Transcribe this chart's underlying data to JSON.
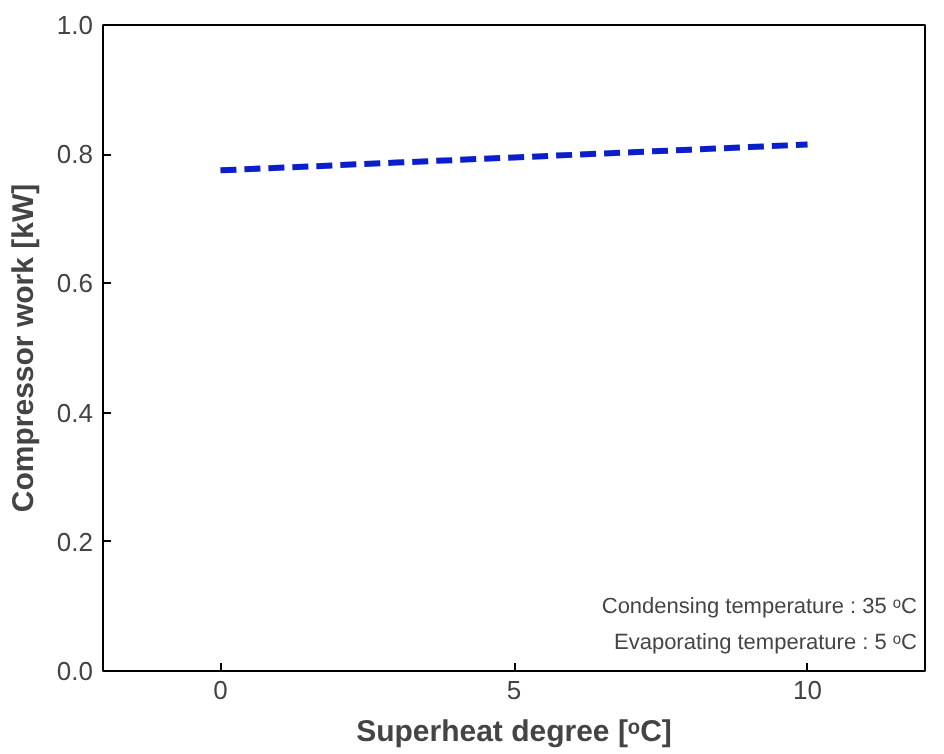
{
  "chart_data": {
    "type": "line",
    "xlabel": "Superheat degree [ᵒC]",
    "ylabel": "Compressor work [kW]",
    "x": [
      0,
      1,
      2,
      3,
      4,
      5,
      6,
      7,
      8,
      9,
      10
    ],
    "series": [
      {
        "color": "#0a1ecc",
        "values": [
          0.775,
          0.779,
          0.783,
          0.787,
          0.791,
          0.795,
          0.799,
          0.803,
          0.807,
          0.811,
          0.815
        ]
      }
    ],
    "line_style": "dashed",
    "marker": "none",
    "grid": false,
    "xlim": [
      -2,
      12
    ],
    "xticks": [
      0,
      5,
      10
    ],
    "ylim": [
      0,
      1
    ],
    "yticks": [
      {
        "value": 0,
        "label": "0.0"
      },
      0.2,
      0.4,
      0.6,
      0.8,
      {
        "value": 1,
        "label": "1.0"
      }
    ],
    "annotations": [
      "Condensing temperature : 35 ᵒC",
      "Evaporating temperature : 5 ᵒC"
    ]
  }
}
